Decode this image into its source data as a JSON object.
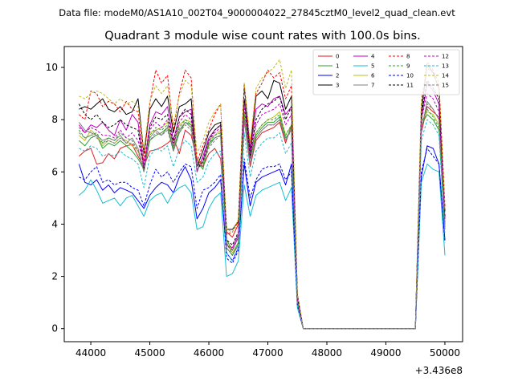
{
  "chart_data": {
    "type": "line",
    "suptitle": "Data file: modeM0/AS1A10_002T04_9000004022_27845cztM0_level2_quad_clean.evt",
    "title": "Quadrant 3 module wise count rates with 100.0s bins.",
    "xlabel": "",
    "ylabel": "",
    "x_offset_label": "+3.436e8",
    "xlim": [
      43550,
      50300
    ],
    "ylim": [
      -0.5,
      10.8
    ],
    "x_ticks": [
      44000,
      45000,
      46000,
      47000,
      48000,
      49000,
      50000
    ],
    "x_tick_labels": [
      "44000",
      "45000",
      "46000",
      "47000",
      "48000",
      "49000",
      "50000"
    ],
    "y_ticks": [
      0,
      2,
      4,
      6,
      8,
      10
    ],
    "y_tick_labels": [
      "0",
      "2",
      "4",
      "6",
      "8",
      "10"
    ],
    "legend_position": "top-right",
    "x": [
      43800,
      43900,
      44000,
      44100,
      44200,
      44300,
      44400,
      44500,
      44600,
      44700,
      44800,
      44900,
      45000,
      45100,
      45200,
      45300,
      45400,
      45500,
      45600,
      45700,
      45800,
      45900,
      46000,
      46100,
      46200,
      46300,
      46400,
      46500,
      46600,
      46700,
      46800,
      46900,
      47000,
      47100,
      47200,
      47300,
      47400,
      47500,
      47600,
      47700,
      47800,
      47900,
      48000,
      48100,
      48200,
      48300,
      48400,
      48500,
      48600,
      48700,
      48800,
      48900,
      49000,
      49100,
      49200,
      49300,
      49400,
      49500,
      49600,
      49700,
      49800,
      49900,
      50000
    ],
    "series": [
      {
        "name": "0",
        "color": "#e31a1c",
        "dash": false,
        "values": [
          6.6,
          6.8,
          6.9,
          6.3,
          6.35,
          6.7,
          6.5,
          6.9,
          7.0,
          7.05,
          6.6,
          6.2,
          6.8,
          6.85,
          6.95,
          7.1,
          7.3,
          6.7,
          7.6,
          7.4,
          6.5,
          6.2,
          6.7,
          6.9,
          6.5,
          3.7,
          3.5,
          4.0,
          8.0,
          6.2,
          7.2,
          7.5,
          7.6,
          7.7,
          7.9,
          7.1,
          7.8,
          1.1,
          0.0,
          0.0,
          0.0,
          0.0,
          0.0,
          0.0,
          0.0,
          0.0,
          0.0,
          0.0,
          0.0,
          0.0,
          0.0,
          0.0,
          0.0,
          0.0,
          0.0,
          0.0,
          0.0,
          0.0,
          7.5,
          8.5,
          8.3,
          8.1,
          4.0
        ]
      },
      {
        "name": "1",
        "color": "#2ca02c",
        "dash": false,
        "values": [
          7.2,
          7.0,
          7.3,
          7.4,
          6.9,
          7.1,
          7.0,
          7.2,
          7.0,
          6.8,
          6.5,
          6.1,
          7.2,
          7.4,
          7.5,
          7.7,
          6.8,
          7.5,
          7.9,
          7.8,
          6.4,
          6.1,
          7.1,
          7.3,
          7.4,
          3.4,
          3.0,
          3.5,
          8.1,
          6.5,
          7.4,
          7.7,
          7.9,
          7.9,
          8.1,
          7.3,
          7.6,
          1.0,
          0.0,
          0.0,
          0.0,
          0.0,
          0.0,
          0.0,
          0.0,
          0.0,
          0.0,
          0.0,
          0.0,
          0.0,
          0.0,
          0.0,
          0.0,
          0.0,
          0.0,
          0.0,
          0.0,
          0.0,
          7.8,
          8.2,
          8.0,
          7.6,
          3.8
        ]
      },
      {
        "name": "2",
        "color": "#0000ff",
        "dash": false,
        "values": [
          6.3,
          5.6,
          5.5,
          5.7,
          5.3,
          5.5,
          5.2,
          5.4,
          5.3,
          5.2,
          4.9,
          4.6,
          5.1,
          5.4,
          5.6,
          5.5,
          5.2,
          5.8,
          6.2,
          5.7,
          4.2,
          4.6,
          5.2,
          5.4,
          5.7,
          2.9,
          2.6,
          3.1,
          6.3,
          4.7,
          5.6,
          5.8,
          5.9,
          6.0,
          6.1,
          5.5,
          6.3,
          0.9,
          0.0,
          0.0,
          0.0,
          0.0,
          0.0,
          0.0,
          0.0,
          0.0,
          0.0,
          0.0,
          0.0,
          0.0,
          0.0,
          0.0,
          0.0,
          0.0,
          0.0,
          0.0,
          0.0,
          0.0,
          5.8,
          7.0,
          6.9,
          6.3,
          3.4
        ]
      },
      {
        "name": "3",
        "color": "#000000",
        "dash": false,
        "values": [
          8.4,
          8.5,
          8.4,
          8.6,
          8.8,
          8.4,
          8.3,
          8.5,
          8.2,
          8.3,
          8.8,
          6.7,
          8.4,
          8.8,
          8.5,
          8.9,
          7.5,
          8.5,
          8.6,
          8.8,
          6.2,
          6.8,
          7.5,
          7.8,
          7.9,
          3.8,
          3.8,
          4.1,
          9.3,
          6.8,
          8.9,
          9.1,
          8.8,
          9.5,
          9.4,
          8.4,
          8.9,
          1.3,
          0.0,
          0.0,
          0.0,
          0.0,
          0.0,
          0.0,
          0.0,
          0.0,
          0.0,
          0.0,
          0.0,
          0.0,
          0.0,
          0.0,
          0.0,
          0.0,
          0.0,
          0.0,
          0.0,
          0.0,
          8.3,
          10.1,
          9.8,
          9.2,
          4.5
        ]
      },
      {
        "name": "4",
        "color": "#bf00bf",
        "dash": false,
        "values": [
          7.8,
          7.5,
          7.8,
          7.7,
          7.9,
          7.6,
          7.4,
          8.0,
          7.6,
          8.2,
          7.9,
          6.2,
          7.8,
          8.3,
          8.2,
          8.5,
          7.2,
          8.1,
          8.3,
          8.4,
          6.0,
          6.6,
          7.3,
          7.6,
          7.8,
          3.2,
          3.1,
          3.6,
          8.8,
          6.7,
          8.4,
          8.6,
          8.5,
          8.8,
          8.9,
          8.2,
          8.5,
          1.2,
          0.0,
          0.0,
          0.0,
          0.0,
          0.0,
          0.0,
          0.0,
          0.0,
          0.0,
          0.0,
          0.0,
          0.0,
          0.0,
          0.0,
          0.0,
          0.0,
          0.0,
          0.0,
          0.0,
          0.0,
          8.0,
          9.4,
          9.1,
          8.6,
          4.2
        ]
      },
      {
        "name": "5",
        "color": "#17becf",
        "dash": false,
        "values": [
          5.1,
          5.3,
          5.7,
          5.3,
          4.8,
          4.9,
          5.0,
          4.7,
          5.0,
          5.1,
          4.7,
          4.3,
          4.9,
          5.1,
          5.2,
          4.8,
          5.2,
          5.4,
          5.5,
          5.2,
          3.8,
          3.9,
          4.6,
          5.0,
          5.2,
          2.0,
          2.1,
          2.6,
          5.5,
          4.3,
          5.1,
          5.3,
          5.4,
          5.5,
          5.6,
          4.9,
          5.4,
          0.8,
          0.0,
          0.0,
          0.0,
          0.0,
          0.0,
          0.0,
          0.0,
          0.0,
          0.0,
          0.0,
          0.0,
          0.0,
          0.0,
          0.0,
          0.0,
          0.0,
          0.0,
          0.0,
          0.0,
          0.0,
          5.6,
          6.3,
          6.1,
          6.0,
          2.8
        ]
      },
      {
        "name": "6",
        "color": "#bcbd22",
        "dash": false,
        "values": [
          7.4,
          7.2,
          7.6,
          7.4,
          7.0,
          7.2,
          7.1,
          7.3,
          7.2,
          7.0,
          6.8,
          6.1,
          7.5,
          7.6,
          7.7,
          7.9,
          7.0,
          7.8,
          8.0,
          7.9,
          6.5,
          6.3,
          7.2,
          7.4,
          7.6,
          3.3,
          2.9,
          3.3,
          8.3,
          6.6,
          7.5,
          7.8,
          8.0,
          8.1,
          8.3,
          7.4,
          7.8,
          1.0,
          0.0,
          0.0,
          0.0,
          0.0,
          0.0,
          0.0,
          0.0,
          0.0,
          0.0,
          0.0,
          0.0,
          0.0,
          0.0,
          0.0,
          0.0,
          0.0,
          0.0,
          0.0,
          0.0,
          0.0,
          7.9,
          8.3,
          8.2,
          7.8,
          3.9
        ]
      },
      {
        "name": "7",
        "color": "#7f7f7f",
        "dash": false,
        "values": [
          7.9,
          7.6,
          7.5,
          7.4,
          7.2,
          7.3,
          7.2,
          7.4,
          7.1,
          7.3,
          6.9,
          6.0,
          7.3,
          7.6,
          7.4,
          7.7,
          6.9,
          7.6,
          7.9,
          7.7,
          6.2,
          6.4,
          7.0,
          7.3,
          7.4,
          3.1,
          2.8,
          3.2,
          8.0,
          6.3,
          7.3,
          7.6,
          7.8,
          7.8,
          8.0,
          7.2,
          7.7,
          1.0,
          0.0,
          0.0,
          0.0,
          0.0,
          0.0,
          0.0,
          0.0,
          0.0,
          0.0,
          0.0,
          0.0,
          0.0,
          0.0,
          0.0,
          0.0,
          0.0,
          0.0,
          0.0,
          0.0,
          0.0,
          7.6,
          8.7,
          8.4,
          8.0,
          4.0
        ]
      },
      {
        "name": "8",
        "color": "#ff0000",
        "dash": true,
        "values": [
          8.2,
          8.0,
          9.1,
          9.0,
          8.5,
          8.7,
          8.6,
          8.3,
          8.7,
          8.4,
          8.3,
          6.4,
          8.6,
          9.9,
          9.4,
          9.7,
          7.6,
          9.0,
          9.9,
          9.6,
          6.4,
          7.0,
          7.6,
          8.2,
          8.6,
          3.6,
          3.7,
          4.1,
          9.4,
          7.0,
          9.0,
          9.4,
          9.9,
          9.6,
          9.8,
          8.8,
          9.3,
          1.3,
          0.0,
          0.0,
          0.0,
          0.0,
          0.0,
          0.0,
          0.0,
          0.0,
          0.0,
          0.0,
          0.0,
          0.0,
          0.0,
          0.0,
          0.0,
          0.0,
          0.0,
          0.0,
          0.0,
          0.0,
          8.6,
          10.2,
          9.9,
          9.4,
          4.7
        ]
      },
      {
        "name": "9",
        "color": "#2ca02c",
        "dash": true,
        "values": [
          7.6,
          7.3,
          7.4,
          7.5,
          7.1,
          7.3,
          7.2,
          7.5,
          7.3,
          7.2,
          6.8,
          6.0,
          7.4,
          7.7,
          7.6,
          7.8,
          6.8,
          7.7,
          8.0,
          7.8,
          6.3,
          6.2,
          7.1,
          7.4,
          7.5,
          3.3,
          2.8,
          3.3,
          8.2,
          6.5,
          7.5,
          7.8,
          8.0,
          8.0,
          8.2,
          7.4,
          7.8,
          1.0,
          0.0,
          0.0,
          0.0,
          0.0,
          0.0,
          0.0,
          0.0,
          0.0,
          0.0,
          0.0,
          0.0,
          0.0,
          0.0,
          0.0,
          0.0,
          0.0,
          0.0,
          0.0,
          0.0,
          0.0,
          7.9,
          8.4,
          8.1,
          7.7,
          3.9
        ]
      },
      {
        "name": "10",
        "color": "#0000ff",
        "dash": true,
        "values": [
          5.8,
          5.7,
          6.0,
          6.2,
          5.6,
          5.7,
          5.5,
          5.6,
          5.6,
          5.4,
          5.3,
          4.7,
          5.5,
          6.1,
          5.8,
          6.0,
          5.6,
          6.0,
          6.3,
          6.2,
          4.6,
          5.3,
          5.4,
          5.6,
          5.9,
          2.7,
          2.5,
          3.0,
          6.5,
          5.0,
          5.7,
          6.1,
          6.2,
          6.2,
          6.3,
          5.7,
          6.0,
          0.9,
          0.0,
          0.0,
          0.0,
          0.0,
          0.0,
          0.0,
          0.0,
          0.0,
          0.0,
          0.0,
          0.0,
          0.0,
          0.0,
          0.0,
          0.0,
          0.0,
          0.0,
          0.0,
          0.0,
          0.0,
          6.0,
          6.9,
          6.6,
          6.3,
          3.3
        ]
      },
      {
        "name": "11",
        "color": "#000000",
        "dash": true,
        "values": [
          8.6,
          8.2,
          8.0,
          8.2,
          7.9,
          7.7,
          7.8,
          8.0,
          7.8,
          7.7,
          7.6,
          6.1,
          7.7,
          8.1,
          8.0,
          8.2,
          7.1,
          8.1,
          8.4,
          8.2,
          6.1,
          6.4,
          7.2,
          7.6,
          7.8,
          3.4,
          3.2,
          3.7,
          8.8,
          6.6,
          8.0,
          8.4,
          8.6,
          8.7,
          8.9,
          8.0,
          8.5,
          1.2,
          0.0,
          0.0,
          0.0,
          0.0,
          0.0,
          0.0,
          0.0,
          0.0,
          0.0,
          0.0,
          0.0,
          0.0,
          0.0,
          0.0,
          0.0,
          0.0,
          0.0,
          0.0,
          0.0,
          0.0,
          8.2,
          9.5,
          9.2,
          8.8,
          4.3
        ]
      },
      {
        "name": "12",
        "color": "#bf00bf",
        "dash": true,
        "values": [
          7.7,
          7.5,
          7.7,
          7.6,
          7.4,
          7.4,
          7.3,
          7.6,
          7.3,
          7.5,
          7.2,
          6.2,
          7.6,
          7.9,
          7.7,
          8.0,
          7.0,
          7.9,
          8.2,
          8.0,
          6.2,
          6.5,
          7.2,
          7.5,
          7.7,
          3.2,
          3.0,
          3.5,
          8.5,
          6.5,
          7.8,
          8.2,
          8.3,
          8.4,
          8.6,
          7.8,
          8.2,
          1.1,
          0.0,
          0.0,
          0.0,
          0.0,
          0.0,
          0.0,
          0.0,
          0.0,
          0.0,
          0.0,
          0.0,
          0.0,
          0.0,
          0.0,
          0.0,
          0.0,
          0.0,
          0.0,
          0.0,
          0.0,
          8.0,
          9.0,
          8.8,
          8.3,
          4.1
        ]
      },
      {
        "name": "13",
        "color": "#17becf",
        "dash": true,
        "values": [
          6.9,
          6.8,
          7.0,
          6.9,
          6.6,
          6.7,
          6.6,
          6.8,
          6.6,
          6.5,
          6.3,
          5.4,
          6.6,
          6.9,
          6.8,
          7.0,
          6.2,
          6.9,
          7.2,
          7.0,
          5.6,
          5.8,
          6.4,
          6.7,
          6.8,
          2.9,
          2.6,
          3.1,
          7.5,
          5.8,
          6.8,
          7.1,
          7.3,
          7.3,
          7.5,
          6.7,
          7.1,
          0.9,
          0.0,
          0.0,
          0.0,
          0.0,
          0.0,
          0.0,
          0.0,
          0.0,
          0.0,
          0.0,
          0.0,
          0.0,
          0.0,
          0.0,
          0.0,
          0.0,
          0.0,
          0.0,
          0.0,
          0.0,
          7.2,
          8.0,
          7.8,
          7.4,
          3.6
        ]
      },
      {
        "name": "14",
        "color": "#bcbd22",
        "dash": true,
        "values": [
          8.9,
          8.8,
          9.0,
          9.1,
          9.0,
          8.8,
          8.6,
          8.8,
          8.6,
          8.7,
          8.5,
          6.8,
          8.7,
          9.3,
          9.0,
          9.3,
          7.8,
          8.9,
          9.5,
          9.3,
          6.7,
          7.2,
          7.9,
          8.3,
          8.6,
          3.8,
          3.7,
          4.2,
          9.4,
          7.1,
          9.2,
          9.6,
          9.8,
          10.0,
          10.3,
          9.2,
          9.9,
          1.3,
          0.0,
          0.0,
          0.0,
          0.0,
          0.0,
          0.0,
          0.0,
          0.0,
          0.0,
          0.0,
          0.0,
          0.0,
          0.0,
          0.0,
          0.0,
          0.0,
          0.0,
          0.0,
          0.0,
          0.0,
          8.8,
          10.0,
          9.7,
          9.3,
          4.6
        ]
      },
      {
        "name": "15",
        "color": "#7f7f7f",
        "dash": true,
        "values": [
          7.5,
          7.3,
          7.4,
          7.3,
          7.1,
          7.2,
          7.1,
          7.3,
          7.1,
          7.1,
          6.8,
          6.0,
          7.2,
          7.5,
          7.4,
          7.6,
          6.8,
          7.5,
          7.8,
          7.6,
          6.1,
          6.3,
          6.9,
          7.2,
          7.4,
          3.1,
          2.8,
          3.3,
          8.0,
          6.3,
          7.3,
          7.6,
          7.8,
          7.8,
          8.0,
          7.2,
          7.6,
          1.0,
          0.0,
          0.0,
          0.0,
          0.0,
          0.0,
          0.0,
          0.0,
          0.0,
          0.0,
          0.0,
          0.0,
          0.0,
          0.0,
          0.0,
          0.0,
          0.0,
          0.0,
          0.0,
          0.0,
          0.0,
          7.7,
          8.6,
          8.4,
          8.0,
          3.9
        ]
      }
    ]
  }
}
